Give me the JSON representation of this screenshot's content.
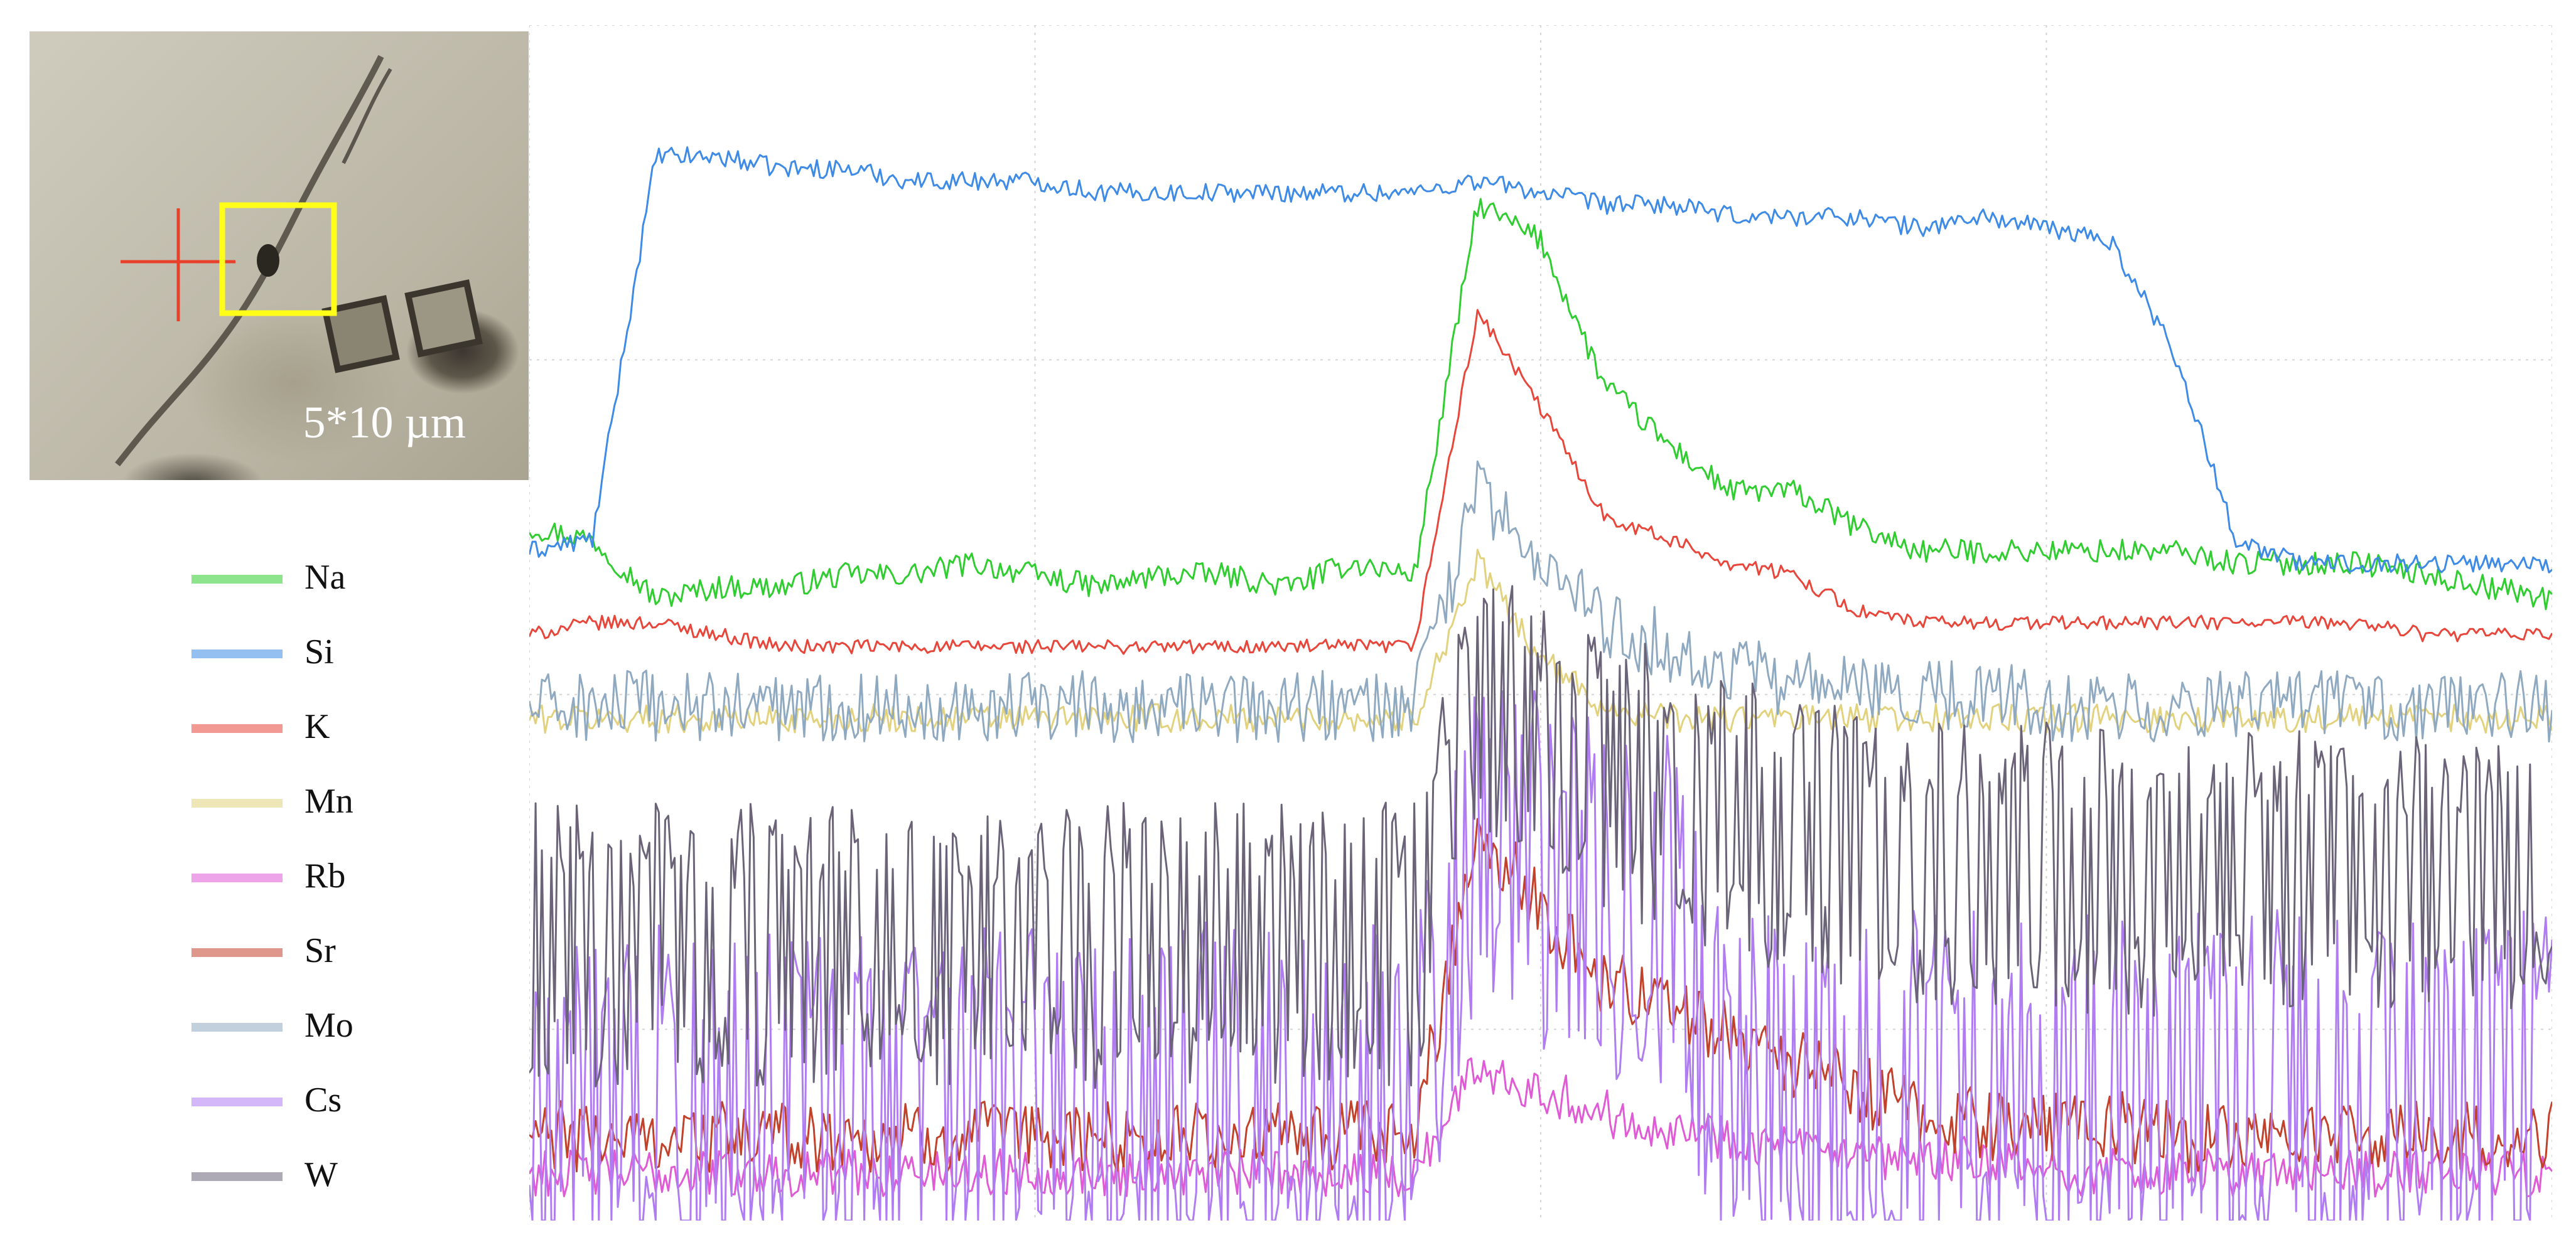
{
  "micrograph": {
    "scale_label": "5*10 µm",
    "crosshair_color": "#e8402a",
    "box_color": "#ffff1a"
  },
  "chart_data": {
    "type": "line",
    "title": "",
    "xlabel": "",
    "ylabel": "",
    "grid": true,
    "legend_position": "left",
    "x": [
      0,
      25,
      50,
      75,
      100,
      125,
      150,
      175,
      200,
      225,
      250,
      275,
      300,
      325,
      350,
      375,
      400,
      425,
      450,
      475,
      500,
      525,
      550,
      575,
      600,
      625,
      650,
      675,
      700,
      725,
      750,
      775,
      800
    ],
    "series": [
      {
        "name": "Na",
        "color": "#2fcd2f",
        "noise": 0.01,
        "values": [
          0.58,
          0.57,
          0.52,
          0.53,
          0.53,
          0.54,
          0.54,
          0.55,
          0.54,
          0.53,
          0.54,
          0.54,
          0.53,
          0.55,
          0.54,
          0.85,
          0.82,
          0.7,
          0.65,
          0.61,
          0.61,
          0.58,
          0.56,
          0.56,
          0.56,
          0.56,
          0.56,
          0.55,
          0.55,
          0.55,
          0.54,
          0.53,
          0.52
        ]
      },
      {
        "name": "Si",
        "color": "#3d8be6",
        "noise": 0.008,
        "values": [
          0.56,
          0.57,
          0.89,
          0.89,
          0.88,
          0.88,
          0.87,
          0.87,
          0.87,
          0.86,
          0.86,
          0.86,
          0.86,
          0.86,
          0.86,
          0.87,
          0.86,
          0.85,
          0.85,
          0.84,
          0.84,
          0.84,
          0.83,
          0.84,
          0.83,
          0.82,
          0.73,
          0.57,
          0.55,
          0.55,
          0.55,
          0.55,
          0.55
        ]
      },
      {
        "name": "K",
        "color": "#e8463a",
        "noise": 0.006,
        "values": [
          0.49,
          0.5,
          0.5,
          0.49,
          0.48,
          0.48,
          0.48,
          0.48,
          0.48,
          0.48,
          0.48,
          0.48,
          0.48,
          0.48,
          0.48,
          0.76,
          0.68,
          0.59,
          0.57,
          0.55,
          0.54,
          0.51,
          0.5,
          0.5,
          0.5,
          0.5,
          0.5,
          0.5,
          0.5,
          0.5,
          0.49,
          0.49,
          0.49
        ]
      },
      {
        "name": "Mn",
        "color": "#e2d27e",
        "noise": 0.012,
        "values": [
          0.42,
          0.42,
          0.42,
          0.42,
          0.42,
          0.42,
          0.42,
          0.42,
          0.42,
          0.42,
          0.42,
          0.42,
          0.42,
          0.42,
          0.42,
          0.55,
          0.47,
          0.43,
          0.42,
          0.42,
          0.42,
          0.42,
          0.42,
          0.42,
          0.42,
          0.42,
          0.42,
          0.42,
          0.42,
          0.42,
          0.42,
          0.42,
          0.42
        ]
      },
      {
        "name": "Rb",
        "color": "#e05ad6",
        "noise": 0.02,
        "values": [
          0.04,
          0.04,
          0.04,
          0.04,
          0.04,
          0.04,
          0.04,
          0.04,
          0.04,
          0.04,
          0.04,
          0.04,
          0.04,
          0.04,
          0.04,
          0.13,
          0.11,
          0.09,
          0.08,
          0.07,
          0.06,
          0.05,
          0.05,
          0.05,
          0.04,
          0.04,
          0.04,
          0.04,
          0.04,
          0.04,
          0.04,
          0.04,
          0.04
        ]
      },
      {
        "name": "Sr",
        "color": "#c2412a",
        "noise": 0.03,
        "values": [
          0.07,
          0.07,
          0.07,
          0.07,
          0.07,
          0.07,
          0.07,
          0.07,
          0.07,
          0.07,
          0.07,
          0.07,
          0.07,
          0.07,
          0.07,
          0.33,
          0.26,
          0.2,
          0.18,
          0.16,
          0.13,
          0.11,
          0.09,
          0.08,
          0.08,
          0.08,
          0.07,
          0.07,
          0.07,
          0.07,
          0.07,
          0.07,
          0.07
        ]
      },
      {
        "name": "Mo",
        "color": "#8fa9c1",
        "noise": 0.03,
        "values": [
          0.43,
          0.43,
          0.43,
          0.43,
          0.43,
          0.43,
          0.43,
          0.43,
          0.43,
          0.43,
          0.43,
          0.43,
          0.43,
          0.43,
          0.43,
          0.61,
          0.55,
          0.5,
          0.48,
          0.46,
          0.45,
          0.44,
          0.44,
          0.44,
          0.43,
          0.43,
          0.43,
          0.43,
          0.43,
          0.43,
          0.43,
          0.43,
          0.43
        ]
      },
      {
        "name": "Cs",
        "color": "#b07cf2",
        "noise": 0.15,
        "values": [
          0.1,
          0.1,
          0.1,
          0.1,
          0.1,
          0.1,
          0.1,
          0.1,
          0.1,
          0.1,
          0.1,
          0.1,
          0.1,
          0.1,
          0.1,
          0.33,
          0.29,
          0.27,
          0.26,
          0.11,
          0.11,
          0.11,
          0.11,
          0.11,
          0.11,
          0.11,
          0.11,
          0.11,
          0.11,
          0.11,
          0.11,
          0.11,
          0.11
        ]
      },
      {
        "name": "W",
        "color": "#6b6479",
        "noise": 0.12,
        "values": [
          0.23,
          0.23,
          0.23,
          0.23,
          0.23,
          0.23,
          0.23,
          0.23,
          0.23,
          0.23,
          0.23,
          0.23,
          0.23,
          0.23,
          0.23,
          0.45,
          0.4,
          0.38,
          0.36,
          0.34,
          0.32,
          0.31,
          0.3,
          0.3,
          0.3,
          0.29,
          0.29,
          0.29,
          0.29,
          0.29,
          0.29,
          0.29,
          0.29
        ]
      }
    ]
  }
}
